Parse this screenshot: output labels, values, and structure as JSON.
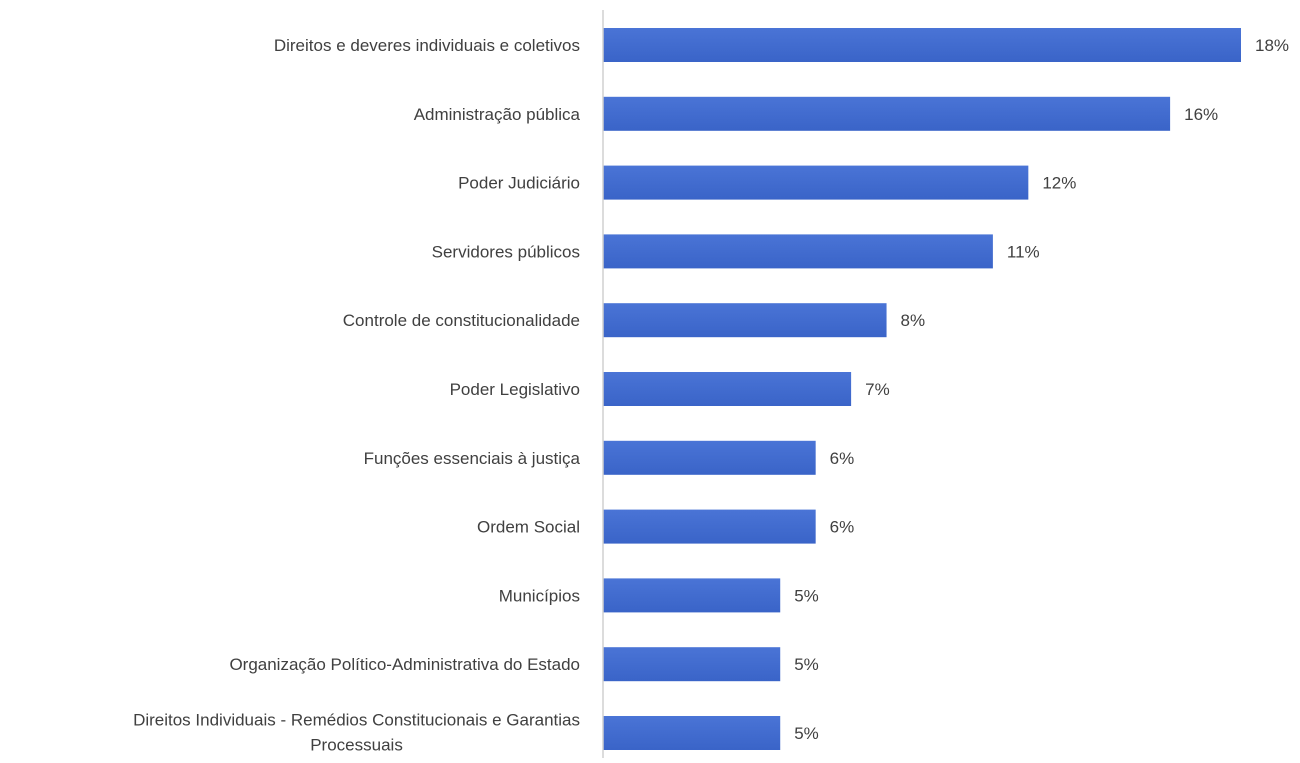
{
  "chart_data": {
    "type": "bar",
    "orientation": "horizontal",
    "title": "",
    "xlabel": "",
    "ylabel": "",
    "grid": false,
    "legend": "none",
    "bar_color": "#3A64C8",
    "bar_color_light": "#4A74D6",
    "axis_color": "#D0D0D0",
    "label_color": "#404040",
    "xlim": [
      0,
      18
    ],
    "categories": [
      "Direitos e deveres individuais e coletivos",
      "Administração pública",
      "Poder Judiciário",
      "Servidores públicos",
      "Controle de constitucionalidade",
      "Poder Legislativo",
      "Funções essenciais à justiça",
      "Ordem Social",
      "Municípios",
      "Organização Político-Administrativa do Estado",
      "Direitos Individuais - Remédios Constitucionais e Garantias Processuais"
    ],
    "category_lines": [
      [
        "Direitos e deveres individuais e coletivos"
      ],
      [
        "Administração pública"
      ],
      [
        "Poder Judiciário"
      ],
      [
        "Servidores públicos"
      ],
      [
        "Controle de constitucionalidade"
      ],
      [
        "Poder Legislativo"
      ],
      [
        "Funções essenciais à justiça"
      ],
      [
        "Ordem Social"
      ],
      [
        "Municípios"
      ],
      [
        "Organização Político-Administrativa do Estado"
      ],
      [
        "Direitos Individuais - Remédios Constitucionais e Garantias",
        "Processuais"
      ]
    ],
    "values": [
      18,
      16,
      12,
      11,
      8,
      7,
      6,
      6,
      5,
      5,
      5
    ],
    "data_labels": [
      "18%",
      "16%",
      "12%",
      "11%",
      "8%",
      "7%",
      "6%",
      "6%",
      "5%",
      "5%",
      "5%"
    ]
  }
}
